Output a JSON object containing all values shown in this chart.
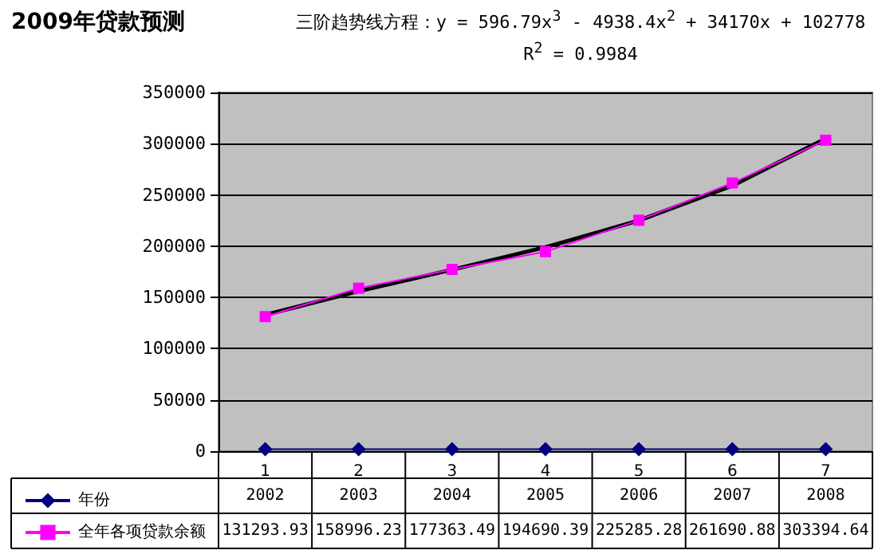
{
  "chart_data": {
    "type": "line",
    "title": "2009年贷款预测",
    "annotations": [
      "三阶趋势线方程：y = 596.79x$^{3}$ - 4938.4x$^{2}$ + 34170x + 102778",
      "R$^{2}$ = 0.9984"
    ],
    "categories": [
      "1",
      "2",
      "3",
      "4",
      "5",
      "6",
      "7"
    ],
    "series": [
      {
        "name": "年份",
        "color": "#000080",
        "marker": "diamond",
        "values": [
          2002,
          2003,
          2004,
          2005,
          2006,
          2007,
          2008
        ],
        "value_labels": [
          "2002",
          "2003",
          "2004",
          "2005",
          "2006",
          "2007",
          "2008"
        ]
      },
      {
        "name": "全年各项贷款余额",
        "color": "#ff00ff",
        "marker": "square",
        "values": [
          131293.93,
          158996.23,
          177363.49,
          194690.39,
          225285.28,
          261690.88,
          303394.64
        ],
        "value_labels": [
          "131293.93",
          "158996.23",
          "177363.49",
          "194690.39",
          "225285.28",
          "261690.88",
          "303394.64"
        ]
      },
      {
        "type": "line",
        "color": "#000000",
        "marker": "none",
        "values": [
          133000,
          156000,
          177000,
          199000,
          225000,
          259000,
          305000
        ]
      }
    ],
    "ylim": [
      0,
      350000
    ],
    "yticks": [
      0,
      50000,
      100000,
      150000,
      200000,
      250000,
      300000,
      350000
    ],
    "grid": "y",
    "legend": "bottom left"
  }
}
